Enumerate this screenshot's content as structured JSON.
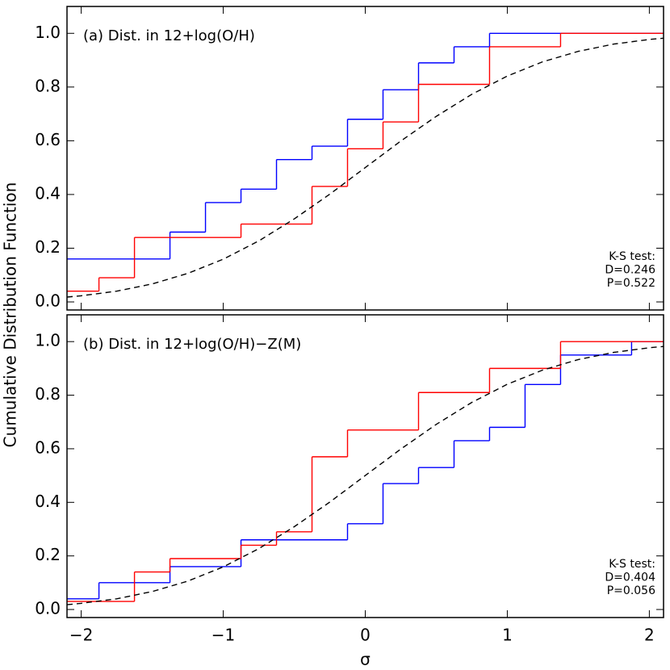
{
  "chart_data": [
    {
      "type": "line",
      "title": "(a) Dist. in 12+log(O/H)",
      "stats": [
        "K-S test:",
        "D=0.246",
        "P=0.522"
      ],
      "ylabel": "Cumulative Distribution Function",
      "xlim": [
        -2.1,
        2.1
      ],
      "ylim": [
        -0.03,
        1.1
      ],
      "xticks": [
        -2,
        -1,
        0,
        1,
        2
      ],
      "xtick_labels": false,
      "yticks": [
        {
          "value": 0,
          "label": "0.0"
        },
        {
          "value": 0.2,
          "label": "0.2"
        },
        {
          "value": 0.4,
          "label": "0.4"
        },
        {
          "value": 0.6,
          "label": "0.6"
        },
        {
          "value": 0.8,
          "label": "0.8"
        },
        {
          "value": 1,
          "label": "1.0"
        }
      ],
      "series": [
        {
          "color": "#0000ff",
          "step": true,
          "x": [
            -2.1,
            -1.375,
            -1.125,
            -0.875,
            -0.625,
            -0.375,
            -0.125,
            0.125,
            0.375,
            0.625,
            0.875
          ],
          "values": [
            0.16,
            0.26,
            0.37,
            0.42,
            0.53,
            0.58,
            0.68,
            0.79,
            0.89,
            0.95,
            1.0
          ]
        },
        {
          "color": "#ff0000",
          "step": true,
          "x": [
            -2.1,
            -1.875,
            -1.625,
            -0.875,
            -0.375,
            -0.125,
            0.125,
            0.375,
            0.875,
            1.375
          ],
          "values": [
            0.04,
            0.09,
            0.24,
            0.29,
            0.43,
            0.57,
            0.67,
            0.81,
            0.95,
            1.0
          ]
        },
        {
          "color": "#000000",
          "dashed": true,
          "x": [
            -2.1,
            -2,
            -1.75,
            -1.5,
            -1.25,
            -1,
            -0.75,
            -0.5,
            -0.25,
            0,
            0.25,
            0.5,
            0.75,
            1,
            1.25,
            1.5,
            1.75,
            2,
            2.1
          ],
          "values": [
            0.018,
            0.023,
            0.04,
            0.067,
            0.106,
            0.159,
            0.227,
            0.309,
            0.401,
            0.5,
            0.599,
            0.691,
            0.773,
            0.841,
            0.894,
            0.933,
            0.96,
            0.977,
            0.982
          ]
        }
      ]
    },
    {
      "type": "line",
      "title": "(b) Dist. in 12+log(O/H)−Z(M)",
      "stats": [
        "K-S test:",
        "D=0.404",
        "P=0.056"
      ],
      "xlabel": "σ",
      "xlim": [
        -2.1,
        2.1
      ],
      "ylim": [
        -0.03,
        1.1
      ],
      "xticks": [
        {
          "value": -2,
          "label": "−2"
        },
        {
          "value": -1,
          "label": "−1"
        },
        0,
        1,
        2
      ],
      "yticks": [
        {
          "value": 0,
          "label": "0.0"
        },
        {
          "value": 0.2,
          "label": "0.2"
        },
        {
          "value": 0.4,
          "label": "0.4"
        },
        {
          "value": 0.6,
          "label": "0.6"
        },
        {
          "value": 0.8,
          "label": "0.8"
        },
        {
          "value": 1,
          "label": "1.0"
        }
      ],
      "series": [
        {
          "color": "#0000ff",
          "step": true,
          "x": [
            -2.1,
            -1.875,
            -1.375,
            -0.875,
            -0.125,
            0.125,
            0.375,
            0.625,
            0.875,
            1.125,
            1.375,
            1.875
          ],
          "values": [
            0.04,
            0.1,
            0.16,
            0.26,
            0.32,
            0.47,
            0.53,
            0.63,
            0.68,
            0.84,
            0.95,
            1.0
          ]
        },
        {
          "color": "#ff0000",
          "step": true,
          "x": [
            -2.1,
            -1.625,
            -1.375,
            -0.875,
            -0.625,
            -0.375,
            -0.125,
            0.375,
            0.875,
            1.375
          ],
          "values": [
            0.03,
            0.14,
            0.19,
            0.24,
            0.29,
            0.57,
            0.67,
            0.81,
            0.9,
            1.0
          ]
        },
        {
          "color": "#000000",
          "dashed": true,
          "x": [
            -2.1,
            -2,
            -1.75,
            -1.5,
            -1.25,
            -1,
            -0.75,
            -0.5,
            -0.25,
            0,
            0.25,
            0.5,
            0.75,
            1,
            1.25,
            1.5,
            1.75,
            2,
            2.1
          ],
          "values": [
            0.018,
            0.023,
            0.04,
            0.067,
            0.106,
            0.159,
            0.227,
            0.309,
            0.401,
            0.5,
            0.599,
            0.691,
            0.773,
            0.841,
            0.894,
            0.933,
            0.96,
            0.977,
            0.982
          ]
        }
      ]
    }
  ]
}
